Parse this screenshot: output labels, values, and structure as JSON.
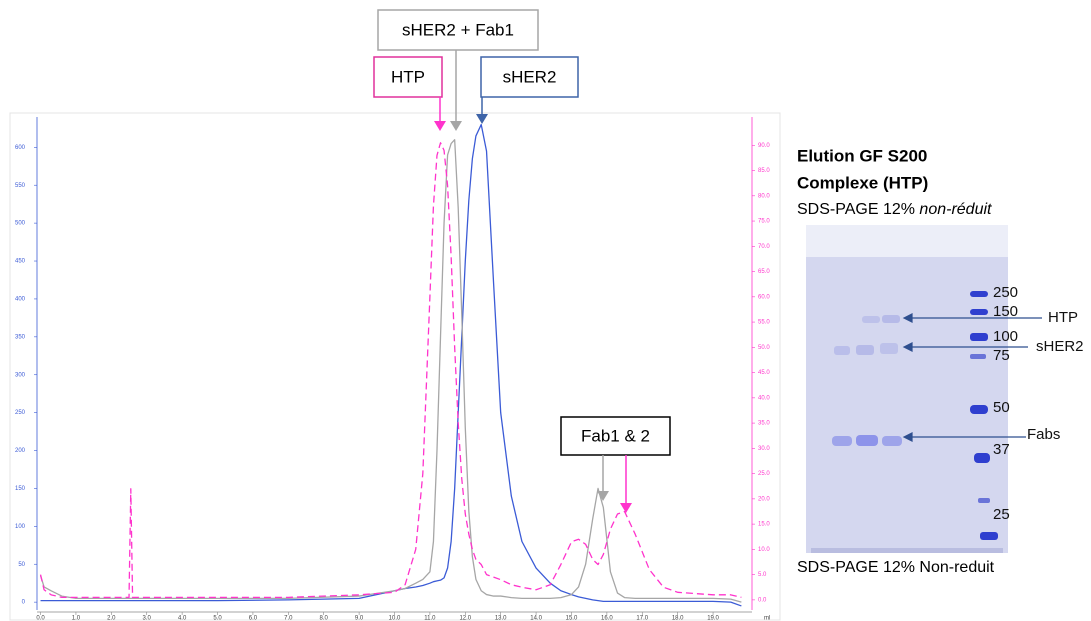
{
  "chart_data": {
    "type": "line",
    "xlabel": "ml",
    "xlim": [
      -0.1,
      20.1
    ],
    "xticks": [
      {
        "value": 0,
        "label": "0.0"
      },
      {
        "value": 1,
        "label": "1.0"
      },
      {
        "value": 2,
        "label": "2.0"
      },
      {
        "value": 3,
        "label": "3.0"
      },
      {
        "value": 4,
        "label": "4.0"
      },
      {
        "value": 5,
        "label": "5.0"
      },
      {
        "value": 6,
        "label": "6.0"
      },
      {
        "value": 7,
        "label": "7.0"
      },
      {
        "value": 8,
        "label": "8.0"
      },
      {
        "value": 9,
        "label": "9.0"
      },
      {
        "value": 10,
        "label": "10.0"
      },
      {
        "value": 11,
        "label": "11.0"
      },
      {
        "value": 12,
        "label": "12.0"
      },
      {
        "value": 13,
        "label": "13.0"
      },
      {
        "value": 14,
        "label": "14.0"
      },
      {
        "value": 15,
        "label": "15.0"
      },
      {
        "value": 16,
        "label": "16.0"
      },
      {
        "value": 17,
        "label": "17.0"
      },
      {
        "value": 18,
        "label": "18.0"
      },
      {
        "value": 19,
        "label": "19.0"
      }
    ],
    "ylim": [
      -13,
      640
    ],
    "yticks": [
      0,
      50,
      100,
      150,
      200,
      250,
      300,
      350,
      400,
      450,
      500,
      550,
      600
    ],
    "y2lim": [
      -2.4,
      95.6
    ],
    "y2ticks": [
      {
        "value": 0,
        "label": "0.0"
      },
      {
        "value": 5,
        "label": "5.0"
      },
      {
        "value": 10,
        "label": "10.0"
      },
      {
        "value": 15,
        "label": "15.0"
      },
      {
        "value": 20,
        "label": "20.0"
      },
      {
        "value": 25,
        "label": "25.0"
      },
      {
        "value": 30,
        "label": "30.0"
      },
      {
        "value": 35,
        "label": "35.0"
      },
      {
        "value": 40,
        "label": "40.0"
      },
      {
        "value": 45,
        "label": "45.0"
      },
      {
        "value": 50,
        "label": "50.0"
      },
      {
        "value": 55,
        "label": "55.0"
      },
      {
        "value": 60,
        "label": "60.0"
      },
      {
        "value": 65,
        "label": "65.0"
      },
      {
        "value": 70,
        "label": "70.0"
      },
      {
        "value": 75,
        "label": "75.0"
      },
      {
        "value": 80,
        "label": "80.0"
      },
      {
        "value": 85,
        "label": "85.0"
      },
      {
        "value": 90,
        "label": "90.0"
      }
    ],
    "y_color": "#3b5bd6",
    "y2_color": "#ff33cc",
    "x": [
      0,
      0.1,
      0.3,
      0.6,
      1.0,
      2.0,
      2.5,
      2.55,
      2.6,
      3.0,
      5.0,
      7.0,
      9.0,
      10.0,
      10.3,
      10.6,
      10.8,
      11.0,
      11.1,
      11.2,
      11.3,
      11.4,
      11.5,
      11.6,
      11.7,
      11.8,
      11.9,
      12.0,
      12.1,
      12.2,
      12.3,
      12.45,
      12.6,
      12.8,
      13.0,
      13.3,
      13.6,
      14.0,
      14.4,
      14.7,
      15.0,
      15.2,
      15.4,
      15.6,
      15.75,
      15.9,
      16.1,
      16.3,
      16.5,
      16.8,
      17.2,
      17.6,
      18.0,
      19.0,
      19.5,
      19.8
    ],
    "series": [
      {
        "color": "#3b5bd6",
        "dash": false,
        "values": [
          2,
          2,
          2,
          2,
          2,
          2,
          2,
          2,
          2,
          2,
          2,
          3,
          5,
          15,
          18,
          20,
          22,
          25,
          27,
          28,
          29,
          32,
          45,
          80,
          150,
          250,
          350,
          450,
          530,
          585,
          615,
          630,
          595,
          420,
          250,
          140,
          80,
          45,
          25,
          15,
          10,
          7,
          5,
          3,
          2,
          1,
          1,
          1,
          1,
          1,
          1,
          1,
          1,
          1,
          0,
          -5
        ]
      },
      {
        "color": "#a6a6a6",
        "dash": false,
        "values": [
          35,
          20,
          15,
          8,
          5,
          5,
          5,
          5,
          5,
          5,
          5,
          5,
          8,
          15,
          18,
          25,
          30,
          40,
          80,
          200,
          350,
          500,
          590,
          605,
          610,
          520,
          380,
          230,
          120,
          60,
          30,
          15,
          10,
          8,
          8,
          6,
          5,
          5,
          5,
          6,
          10,
          20,
          50,
          110,
          150,
          125,
          40,
          12,
          6,
          5,
          5,
          5,
          5,
          5,
          4,
          0
        ]
      },
      {
        "color": "#ff33cc",
        "dash": true,
        "axis": "y2",
        "values": [
          5,
          2,
          1,
          0.5,
          0.5,
          0.5,
          0.5,
          22,
          0.5,
          0.5,
          0.5,
          0.5,
          1,
          1.5,
          3,
          10,
          25,
          60,
          78,
          88,
          90.5,
          89,
          82,
          68,
          50,
          35,
          24,
          17,
          13,
          10,
          8,
          7,
          5,
          4.5,
          4,
          3,
          2.5,
          2,
          3,
          7,
          11.5,
          12,
          11,
          8,
          7,
          9,
          14,
          17,
          17.5,
          13,
          6,
          2.5,
          1.5,
          1,
          1,
          0.5
        ]
      }
    ],
    "annotations": [
      {
        "text": "sHER2 + Fab1",
        "color": "#a6a6a6"
      },
      {
        "text": "HTP",
        "color": "#e0309c"
      },
      {
        "text": "sHER2",
        "color": "#3e64a8"
      },
      {
        "text": "Fab1 & 2",
        "color": "#000000"
      }
    ]
  },
  "gel": {
    "title_line1": "Elution GF S200",
    "title_line2": "Complexe (HTP)",
    "subtitle": "SDS-PAGE 12%",
    "subtitle_em": "non-réduit",
    "markers": [
      250,
      150,
      100,
      75,
      50,
      37,
      25
    ],
    "band_labels": [
      "HTP",
      "sHER2",
      "Fabs"
    ],
    "caption": "SDS-PAGE 12% Non-reduit"
  }
}
